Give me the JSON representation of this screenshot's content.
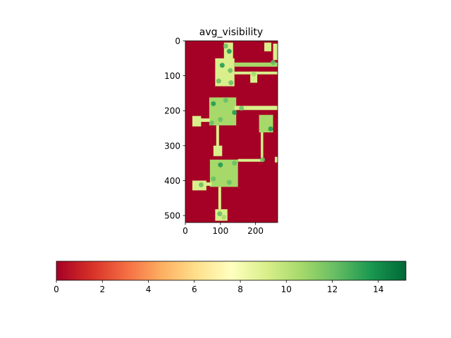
{
  "chart_data": {
    "type": "heatmap",
    "title": "avg_visibility",
    "xlabel": "",
    "ylabel": "",
    "xlim": [
      0,
      263
    ],
    "ylim": [
      520,
      0
    ],
    "x_ticks": [
      0,
      100,
      200
    ],
    "y_ticks": [
      0,
      100,
      200,
      300,
      400,
      500
    ],
    "colormap": "RdYlGn",
    "colorbar": {
      "orientation": "horizontal",
      "range": [
        0,
        15.2
      ],
      "ticks": [
        0,
        2,
        4,
        6,
        8,
        10,
        12,
        14
      ],
      "stops": [
        "#a50026",
        "#d73027",
        "#f46d43",
        "#fdae61",
        "#fee08b",
        "#ffffbf",
        "#d9ef8b",
        "#a6d96a",
        "#66bd63",
        "#1a9850",
        "#006837"
      ]
    },
    "background_value": 0,
    "regions": [
      {
        "x0": 110,
        "x1": 136,
        "y0": 5,
        "y1": 55,
        "v": 9.5
      },
      {
        "x0": 225,
        "x1": 245,
        "y0": 5,
        "y1": 30,
        "v": 9
      },
      {
        "x0": 250,
        "x1": 263,
        "y0": 8,
        "y1": 55,
        "v": 9.5
      },
      {
        "x0": 85,
        "x1": 140,
        "y0": 50,
        "y1": 130,
        "v": 9
      },
      {
        "x0": 140,
        "x1": 263,
        "y0": 62,
        "y1": 74,
        "v": 10
      },
      {
        "x0": 140,
        "x1": 263,
        "y0": 88,
        "y1": 96,
        "v": 9
      },
      {
        "x0": 185,
        "x1": 205,
        "y0": 88,
        "y1": 120,
        "v": 9.5
      },
      {
        "x0": 68,
        "x1": 145,
        "y0": 162,
        "y1": 242,
        "v": 10
      },
      {
        "x0": 140,
        "x1": 263,
        "y0": 186,
        "y1": 198,
        "v": 9.5
      },
      {
        "x0": 20,
        "x1": 45,
        "y0": 215,
        "y1": 245,
        "v": 9
      },
      {
        "x0": 40,
        "x1": 70,
        "y0": 222,
        "y1": 232,
        "v": 8.5
      },
      {
        "x0": 88,
        "x1": 96,
        "y0": 242,
        "y1": 310,
        "v": 8.5
      },
      {
        "x0": 80,
        "x1": 105,
        "y0": 300,
        "y1": 330,
        "v": 9
      },
      {
        "x0": 210,
        "x1": 250,
        "y0": 212,
        "y1": 262,
        "v": 10
      },
      {
        "x0": 215,
        "x1": 222,
        "y0": 262,
        "y1": 345,
        "v": 8.5
      },
      {
        "x0": 150,
        "x1": 222,
        "y0": 338,
        "y1": 346,
        "v": 8.5
      },
      {
        "x0": 255,
        "x1": 263,
        "y0": 332,
        "y1": 348,
        "v": 8.5
      },
      {
        "x0": 70,
        "x1": 150,
        "y0": 340,
        "y1": 418,
        "v": 10
      },
      {
        "x0": 20,
        "x1": 60,
        "y0": 400,
        "y1": 428,
        "v": 9
      },
      {
        "x0": 55,
        "x1": 75,
        "y0": 405,
        "y1": 415,
        "v": 8.5
      },
      {
        "x0": 94,
        "x1": 102,
        "y0": 418,
        "y1": 482,
        "v": 8.5
      },
      {
        "x0": 85,
        "x1": 120,
        "y0": 482,
        "y1": 515,
        "v": 9
      }
    ],
    "hotspots": [
      {
        "x": 125,
        "y": 30,
        "v": 13
      },
      {
        "x": 115,
        "y": 15,
        "v": 11.5
      },
      {
        "x": 250,
        "y": 62,
        "v": 12
      },
      {
        "x": 195,
        "y": 95,
        "v": 11
      },
      {
        "x": 105,
        "y": 70,
        "v": 13
      },
      {
        "x": 128,
        "y": 85,
        "v": 12
      },
      {
        "x": 95,
        "y": 115,
        "v": 12.5
      },
      {
        "x": 130,
        "y": 120,
        "v": 11.5
      },
      {
        "x": 80,
        "y": 180,
        "v": 13
      },
      {
        "x": 115,
        "y": 170,
        "v": 12
      },
      {
        "x": 140,
        "y": 205,
        "v": 13
      },
      {
        "x": 100,
        "y": 225,
        "v": 12.5
      },
      {
        "x": 75,
        "y": 235,
        "v": 12
      },
      {
        "x": 160,
        "y": 193,
        "v": 11.5
      },
      {
        "x": 235,
        "y": 225,
        "v": 11
      },
      {
        "x": 243,
        "y": 252,
        "v": 14
      },
      {
        "x": 220,
        "y": 340,
        "v": 12.5
      },
      {
        "x": 100,
        "y": 355,
        "v": 13
      },
      {
        "x": 140,
        "y": 350,
        "v": 12
      },
      {
        "x": 80,
        "y": 395,
        "v": 12.5
      },
      {
        "x": 125,
        "y": 405,
        "v": 11.5
      },
      {
        "x": 45,
        "y": 412,
        "v": 12
      },
      {
        "x": 98,
        "y": 495,
        "v": 11.5
      },
      {
        "x": 110,
        "y": 505,
        "v": 11
      }
    ]
  }
}
